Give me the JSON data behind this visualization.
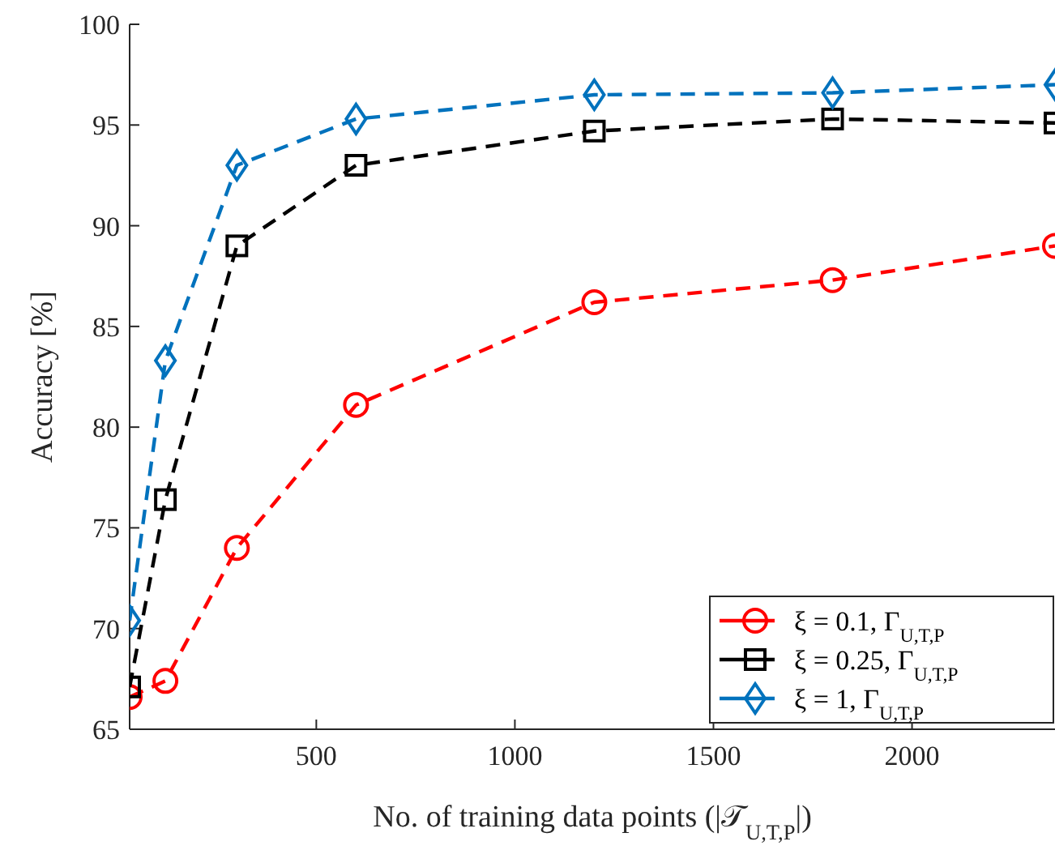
{
  "chart_data": {
    "type": "line",
    "xlabel": "No. of training data points (|𝒯$_{U,T,P}$|)",
    "ylabel": "Accuracy [%]",
    "x": [
      30,
      120,
      300,
      600,
      1200,
      1800,
      2360
    ],
    "series": [
      {
        "name": "ξ = 0.1, Γ$_{U,T,P}$",
        "color": "#ff0000",
        "marker": "circle",
        "values": [
          66.6,
          67.4,
          74.0,
          81.1,
          86.2,
          87.3,
          89.0
        ]
      },
      {
        "name": "ξ = 0.25, Γ$_{U,T,P}$",
        "color": "#000000",
        "marker": "square",
        "values": [
          67.1,
          76.4,
          89.0,
          93.0,
          94.7,
          95.3,
          95.1
        ]
      },
      {
        "name": "ξ = 1, Γ$_{U,T,P}$",
        "color": "#0072bd",
        "marker": "diamond",
        "values": [
          70.4,
          83.3,
          93.0,
          95.3,
          96.5,
          96.6,
          97.0
        ]
      }
    ],
    "xlim": [
      30,
      2360
    ],
    "xticks": [
      500,
      1000,
      1500,
      2000
    ],
    "ylim": [
      65,
      100
    ],
    "yticks": [
      65,
      70,
      75,
      80,
      85,
      90,
      95,
      100
    ],
    "line_style": "dashed",
    "legend": "bottom right",
    "grid": false
  }
}
